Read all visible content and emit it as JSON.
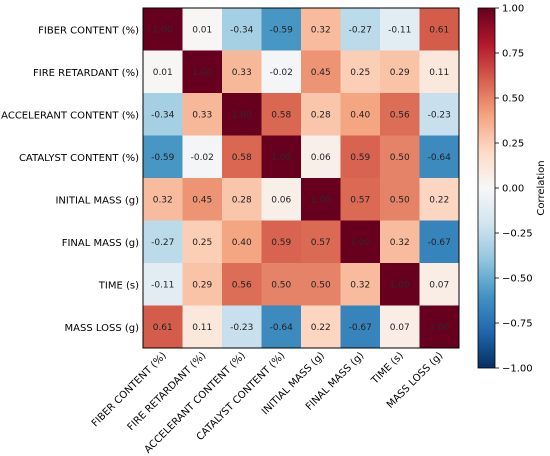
{
  "chart_data": {
    "type": "heatmap",
    "title": "",
    "variables": [
      "FIBER CONTENT (%)",
      "FIRE RETARDANT (%)",
      "ACCELERANT CONTENT (%)",
      "CATALYST CONTENT (%)",
      "INITIAL MASS (g)",
      "FINAL MASS (g)",
      "TIME (s)",
      "MASS LOSS (g)"
    ],
    "matrix": [
      [
        1.0,
        0.01,
        -0.34,
        -0.59,
        0.32,
        -0.27,
        -0.11,
        0.61
      ],
      [
        0.01,
        1.0,
        0.33,
        -0.02,
        0.45,
        0.25,
        0.29,
        0.11
      ],
      [
        -0.34,
        0.33,
        1.0,
        0.58,
        0.28,
        0.4,
        0.56,
        -0.23
      ],
      [
        -0.59,
        -0.02,
        0.58,
        1.0,
        0.06,
        0.59,
        0.5,
        -0.64
      ],
      [
        0.32,
        0.45,
        0.28,
        0.06,
        1.0,
        0.57,
        0.5,
        0.22
      ],
      [
        -0.27,
        0.25,
        0.4,
        0.59,
        0.57,
        1.0,
        0.32,
        -0.67
      ],
      [
        -0.11,
        0.29,
        0.56,
        0.5,
        0.5,
        0.32,
        1.0,
        0.07
      ],
      [
        0.61,
        0.11,
        -0.23,
        -0.64,
        0.22,
        -0.67,
        0.07,
        1.0
      ]
    ],
    "colorbar": {
      "label": "Correlation",
      "min": -1.0,
      "max": 1.0,
      "ticks": [
        1.0,
        0.75,
        0.5,
        0.25,
        0.0,
        -0.25,
        -0.5,
        -0.75,
        -1.0
      ],
      "tick_labels": [
        "1.00",
        "0.75",
        "0.50",
        "0.25",
        "0.00",
        "−0.25",
        "−0.50",
        "−0.75",
        "−1.00"
      ]
    },
    "colormap": "RdBu_r"
  }
}
